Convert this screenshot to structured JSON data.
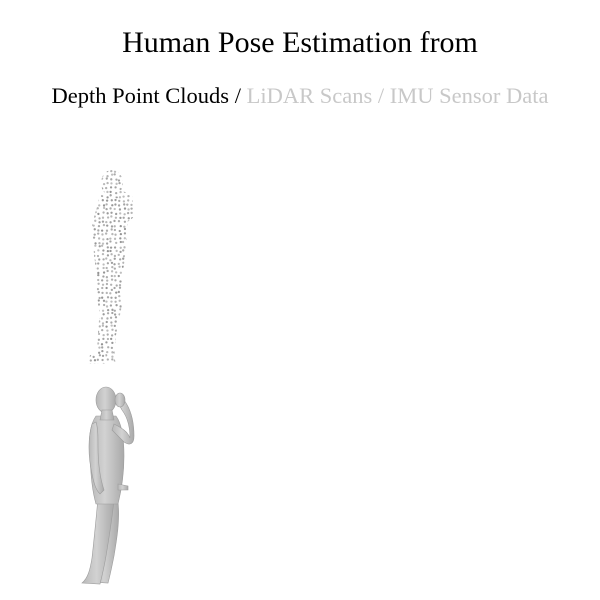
{
  "title": "Human Pose Estimation from",
  "modalities": [
    {
      "label": "Depth Point Clouds",
      "active": true
    },
    {
      "label": "LiDAR Scans",
      "active": false
    },
    {
      "label": "IMU Sensor Data",
      "active": false
    }
  ],
  "separator": "/",
  "colors": {
    "active_text": "#000000",
    "inactive_text": "#c8c8c8",
    "point_cloud": "#8c8c8c",
    "mesh_fill": "#c4c4c4",
    "mesh_shade": "#a8a8a8"
  }
}
